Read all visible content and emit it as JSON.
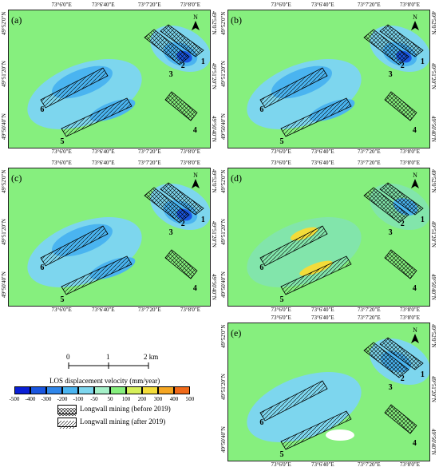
{
  "panels": [
    {
      "id": "a",
      "label": "(a)"
    },
    {
      "id": "b",
      "label": "(b)"
    },
    {
      "id": "c",
      "label": "(c)"
    },
    {
      "id": "d",
      "label": "(d)"
    },
    {
      "id": "e",
      "label": "(e)"
    }
  ],
  "x_ticks": [
    "73°6'0\"E",
    "73°6'40\"E",
    "73°7'20\"E",
    "73°8'0\"E"
  ],
  "y_ticks_left": [
    "49°52'0\"N",
    "49°51'20\"N",
    "49°50'40\"N"
  ],
  "y_ticks_right": [
    "49°52'0\"N",
    "49°51'20\"N",
    "49°50'40\"N"
  ],
  "panel_numbers": [
    "1",
    "2",
    "3",
    "4",
    "5",
    "6"
  ],
  "north_arrow": "N",
  "scale": {
    "ticks": [
      "0",
      "1",
      "2 km"
    ]
  },
  "colorbar": {
    "title": "LOS displacement velocity (mm/year)",
    "labels": [
      "-500",
      "-400",
      "-300",
      "-200",
      "-100",
      "-50",
      "50",
      "100",
      "200",
      "300",
      "400",
      "500"
    ],
    "colors": [
      "#0a1fd6",
      "#1a56e0",
      "#2f86ea",
      "#4ab4f0",
      "#7dd6ee",
      "#a5f0c8",
      "#86ef7e",
      "#d6ef5a",
      "#f3dc3a",
      "#f5a623",
      "#f06a1a",
      "#e01a10"
    ]
  },
  "legend": {
    "before": "Longwall mining (before 2019)",
    "after": "Longwall mining (after 2019)"
  },
  "colors": {
    "background": "#86ef7e",
    "subsidence_light": "#7dd6ee",
    "subsidence_mid": "#4ab4f0",
    "subsidence_deep": "#1a56e0",
    "uplift": "#f3dc3a"
  }
}
